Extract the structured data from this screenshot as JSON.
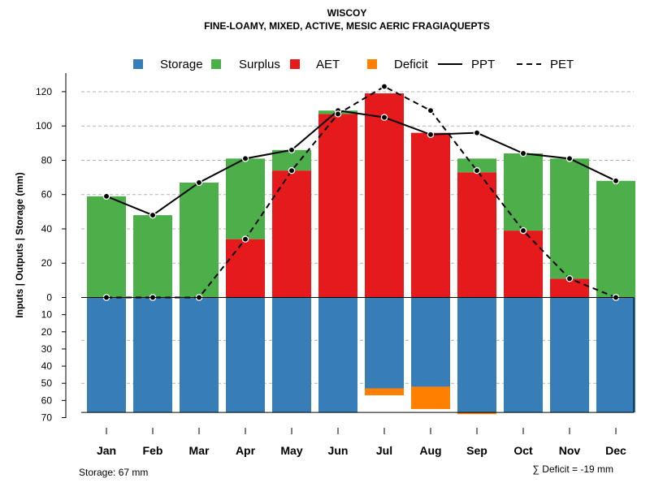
{
  "chart_data": {
    "type": "bar",
    "title": "WISCOY",
    "subtitle": "FINE-LOAMY, MIXED, ACTIVE, MESIC AERIC FRAGIAQUEPTS",
    "ylabel": "Inputs | Outputs | Storage    (mm)",
    "categories": [
      "Jan",
      "Feb",
      "Mar",
      "Apr",
      "May",
      "Jun",
      "Jul",
      "Aug",
      "Sep",
      "Oct",
      "Nov",
      "Dec"
    ],
    "ylim_upper": [
      0,
      130
    ],
    "ylim_lower": [
      0,
      70
    ],
    "upper_ticks": [
      0,
      20,
      40,
      60,
      80,
      100,
      120
    ],
    "lower_ticks": [
      10,
      20,
      30,
      40,
      50,
      60,
      70
    ],
    "legend": [
      "Storage",
      "Surplus",
      "AET",
      "Deficit",
      "PPT",
      "PET"
    ],
    "series": [
      {
        "name": "AET",
        "values": [
          0,
          0,
          0,
          34,
          74,
          107,
          119,
          96,
          73,
          39,
          11,
          0
        ]
      },
      {
        "name": "Surplus",
        "values": [
          59,
          48,
          67,
          47,
          12,
          2,
          0,
          0,
          8,
          45,
          70,
          68
        ]
      },
      {
        "name": "Storage",
        "values": [
          67,
          67,
          67,
          67,
          67,
          67,
          53,
          52,
          67,
          67,
          67,
          67
        ]
      },
      {
        "name": "Deficit",
        "values": [
          0,
          0,
          0,
          0,
          0,
          0,
          4,
          13,
          1,
          0,
          0,
          0
        ]
      },
      {
        "name": "PPT",
        "values": [
          59,
          48,
          67,
          81,
          86,
          109,
          105,
          95,
          96,
          84,
          81,
          68
        ]
      },
      {
        "name": "PET",
        "values": [
          0,
          0,
          0,
          34,
          74,
          107,
          123,
          109,
          74,
          39,
          11,
          0
        ]
      }
    ],
    "colors": {
      "Storage": "#377eb8",
      "Surplus": "#4daf4a",
      "AET": "#e41a1c",
      "Deficit": "#ff7f00",
      "line": "#000000"
    }
  },
  "footer": {
    "storage_note": "Storage: 67 mm",
    "deficit_note": "∑ Deficit = -19 mm"
  }
}
